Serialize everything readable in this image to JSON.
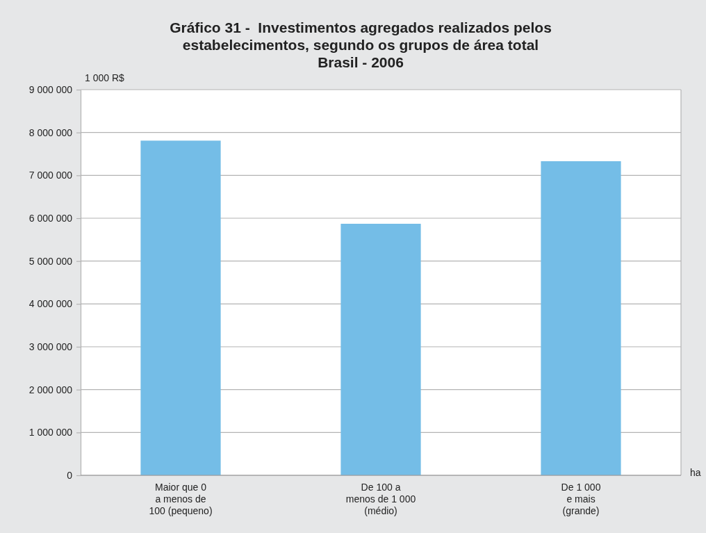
{
  "chart_data": {
    "type": "bar",
    "title": "Gráfico 31 -  Investimentos agregados realizados pelos\nestabelecimentos, segundo os grupos de área total\nBrasil - 2006",
    "ylabel": "1 000 R$",
    "xlabel": "ha",
    "categories": [
      "Maior que 0\na menos de\n100 (pequeno)",
      "De 100 a\nmenos de 1 000\n(médio)",
      "De 1 000\ne mais\n(grande)"
    ],
    "values": [
      7810000,
      5870000,
      7330000
    ],
    "color": "#74bde7",
    "ylim": [
      0,
      9000000
    ],
    "yticks": [
      {
        "value": 0,
        "label": "0"
      },
      {
        "value": 1000000,
        "label": "1 000 000"
      },
      {
        "value": 2000000,
        "label": "2 000 000"
      },
      {
        "value": 3000000,
        "label": "3 000 000"
      },
      {
        "value": 4000000,
        "label": "4 000 000"
      },
      {
        "value": 5000000,
        "label": "5 000 000"
      },
      {
        "value": 6000000,
        "label": "6 000 000"
      },
      {
        "value": 7000000,
        "label": "7 000 000"
      },
      {
        "value": 8000000,
        "label": "8 000 000"
      },
      {
        "value": 9000000,
        "label": "9 000 000"
      }
    ],
    "grid": "y"
  }
}
